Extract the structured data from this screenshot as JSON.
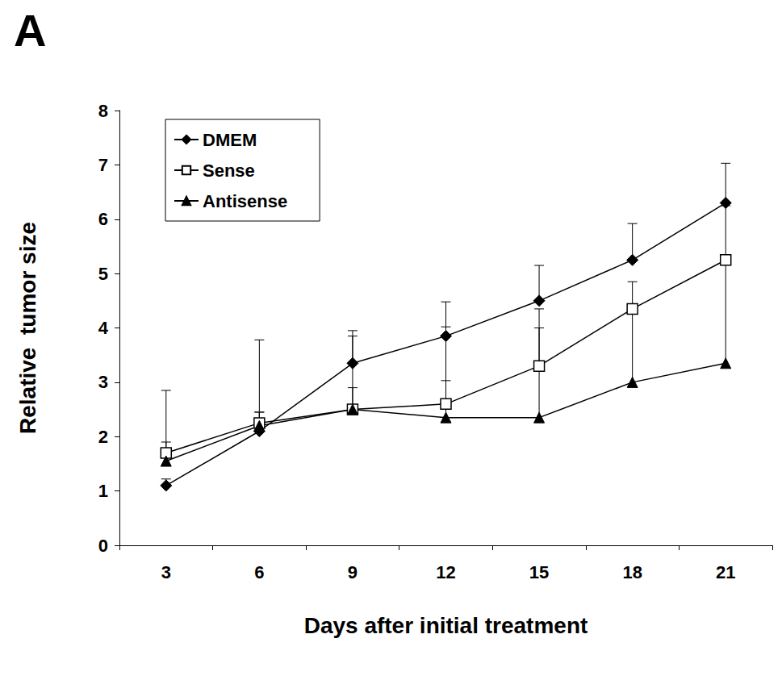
{
  "chart_data": {
    "type": "line",
    "title": "A",
    "x_label": "Days after initial treatment",
    "y_label": "Relative  tumor size",
    "categories": [
      "3",
      "6",
      "9",
      "12",
      "15",
      "18",
      "21"
    ],
    "series": [
      {
        "name": "DMEM",
        "color": "#000000",
        "marker": "diamond",
        "values": [
          1.1,
          2.1,
          3.35,
          3.85,
          4.5,
          5.25,
          6.3
        ],
        "error": [
          0.12,
          0.35,
          0.6,
          0.63,
          0.65,
          0.67,
          0.73
        ]
      },
      {
        "name": "Sense",
        "color": "#000000",
        "marker": "square-open",
        "values": [
          1.7,
          2.25,
          2.5,
          2.6,
          3.3,
          4.35,
          5.25
        ],
        "error": [
          1.15,
          1.53,
          1.35,
          1.42,
          1.05,
          0.5,
          1.0
        ]
      },
      {
        "name": "Antisense",
        "color": "#000000",
        "marker": "triangle",
        "values": [
          1.55,
          2.2,
          2.5,
          2.35,
          2.35,
          3.0,
          3.35
        ],
        "error": [
          0.35,
          0.25,
          0.4,
          0.68,
          1.65,
          1.3,
          1.9
        ]
      }
    ],
    "ylim": [
      0,
      8
    ],
    "yticks": [
      0,
      1,
      2,
      3,
      4,
      5,
      6,
      7,
      8
    ],
    "grid": false,
    "legend": "upper left"
  }
}
